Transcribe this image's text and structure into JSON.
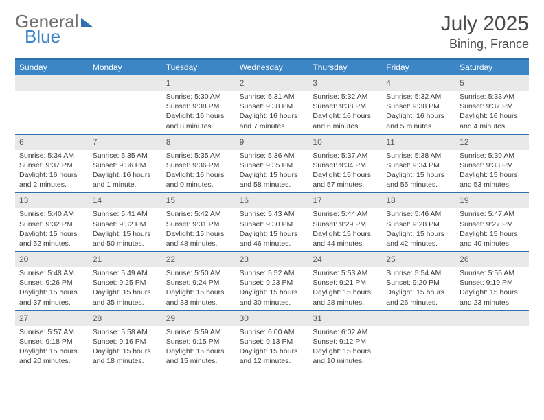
{
  "logo": {
    "word1": "General",
    "word2": "Blue"
  },
  "title": {
    "month": "July 2025",
    "location": "Bining, France"
  },
  "colors": {
    "header_bar": "#3d86c6",
    "rule": "#2f6fb3",
    "daynum_bg": "#e9e9e9",
    "text": "#3c3c3c",
    "title_text": "#4a4a4a"
  },
  "days_of_week": [
    "Sunday",
    "Monday",
    "Tuesday",
    "Wednesday",
    "Thursday",
    "Friday",
    "Saturday"
  ],
  "weeks": [
    [
      {
        "blank": true
      },
      {
        "blank": true
      },
      {
        "n": "1",
        "sunrise": "5:30 AM",
        "sunset": "9:38 PM",
        "daylight": "16 hours and 8 minutes."
      },
      {
        "n": "2",
        "sunrise": "5:31 AM",
        "sunset": "9:38 PM",
        "daylight": "16 hours and 7 minutes."
      },
      {
        "n": "3",
        "sunrise": "5:32 AM",
        "sunset": "9:38 PM",
        "daylight": "16 hours and 6 minutes."
      },
      {
        "n": "4",
        "sunrise": "5:32 AM",
        "sunset": "9:38 PM",
        "daylight": "16 hours and 5 minutes."
      },
      {
        "n": "5",
        "sunrise": "5:33 AM",
        "sunset": "9:37 PM",
        "daylight": "16 hours and 4 minutes."
      }
    ],
    [
      {
        "n": "6",
        "sunrise": "5:34 AM",
        "sunset": "9:37 PM",
        "daylight": "16 hours and 2 minutes."
      },
      {
        "n": "7",
        "sunrise": "5:35 AM",
        "sunset": "9:36 PM",
        "daylight": "16 hours and 1 minute."
      },
      {
        "n": "8",
        "sunrise": "5:35 AM",
        "sunset": "9:36 PM",
        "daylight": "16 hours and 0 minutes."
      },
      {
        "n": "9",
        "sunrise": "5:36 AM",
        "sunset": "9:35 PM",
        "daylight": "15 hours and 58 minutes."
      },
      {
        "n": "10",
        "sunrise": "5:37 AM",
        "sunset": "9:34 PM",
        "daylight": "15 hours and 57 minutes."
      },
      {
        "n": "11",
        "sunrise": "5:38 AM",
        "sunset": "9:34 PM",
        "daylight": "15 hours and 55 minutes."
      },
      {
        "n": "12",
        "sunrise": "5:39 AM",
        "sunset": "9:33 PM",
        "daylight": "15 hours and 53 minutes."
      }
    ],
    [
      {
        "n": "13",
        "sunrise": "5:40 AM",
        "sunset": "9:32 PM",
        "daylight": "15 hours and 52 minutes."
      },
      {
        "n": "14",
        "sunrise": "5:41 AM",
        "sunset": "9:32 PM",
        "daylight": "15 hours and 50 minutes."
      },
      {
        "n": "15",
        "sunrise": "5:42 AM",
        "sunset": "9:31 PM",
        "daylight": "15 hours and 48 minutes."
      },
      {
        "n": "16",
        "sunrise": "5:43 AM",
        "sunset": "9:30 PM",
        "daylight": "15 hours and 46 minutes."
      },
      {
        "n": "17",
        "sunrise": "5:44 AM",
        "sunset": "9:29 PM",
        "daylight": "15 hours and 44 minutes."
      },
      {
        "n": "18",
        "sunrise": "5:46 AM",
        "sunset": "9:28 PM",
        "daylight": "15 hours and 42 minutes."
      },
      {
        "n": "19",
        "sunrise": "5:47 AM",
        "sunset": "9:27 PM",
        "daylight": "15 hours and 40 minutes."
      }
    ],
    [
      {
        "n": "20",
        "sunrise": "5:48 AM",
        "sunset": "9:26 PM",
        "daylight": "15 hours and 37 minutes."
      },
      {
        "n": "21",
        "sunrise": "5:49 AM",
        "sunset": "9:25 PM",
        "daylight": "15 hours and 35 minutes."
      },
      {
        "n": "22",
        "sunrise": "5:50 AM",
        "sunset": "9:24 PM",
        "daylight": "15 hours and 33 minutes."
      },
      {
        "n": "23",
        "sunrise": "5:52 AM",
        "sunset": "9:23 PM",
        "daylight": "15 hours and 30 minutes."
      },
      {
        "n": "24",
        "sunrise": "5:53 AM",
        "sunset": "9:21 PM",
        "daylight": "15 hours and 28 minutes."
      },
      {
        "n": "25",
        "sunrise": "5:54 AM",
        "sunset": "9:20 PM",
        "daylight": "15 hours and 26 minutes."
      },
      {
        "n": "26",
        "sunrise": "5:55 AM",
        "sunset": "9:19 PM",
        "daylight": "15 hours and 23 minutes."
      }
    ],
    [
      {
        "n": "27",
        "sunrise": "5:57 AM",
        "sunset": "9:18 PM",
        "daylight": "15 hours and 20 minutes."
      },
      {
        "n": "28",
        "sunrise": "5:58 AM",
        "sunset": "9:16 PM",
        "daylight": "15 hours and 18 minutes."
      },
      {
        "n": "29",
        "sunrise": "5:59 AM",
        "sunset": "9:15 PM",
        "daylight": "15 hours and 15 minutes."
      },
      {
        "n": "30",
        "sunrise": "6:00 AM",
        "sunset": "9:13 PM",
        "daylight": "15 hours and 12 minutes."
      },
      {
        "n": "31",
        "sunrise": "6:02 AM",
        "sunset": "9:12 PM",
        "daylight": "15 hours and 10 minutes."
      },
      {
        "blank": true
      },
      {
        "blank": true
      }
    ]
  ],
  "labels": {
    "sunrise": "Sunrise:",
    "sunset": "Sunset:",
    "daylight": "Daylight:"
  }
}
